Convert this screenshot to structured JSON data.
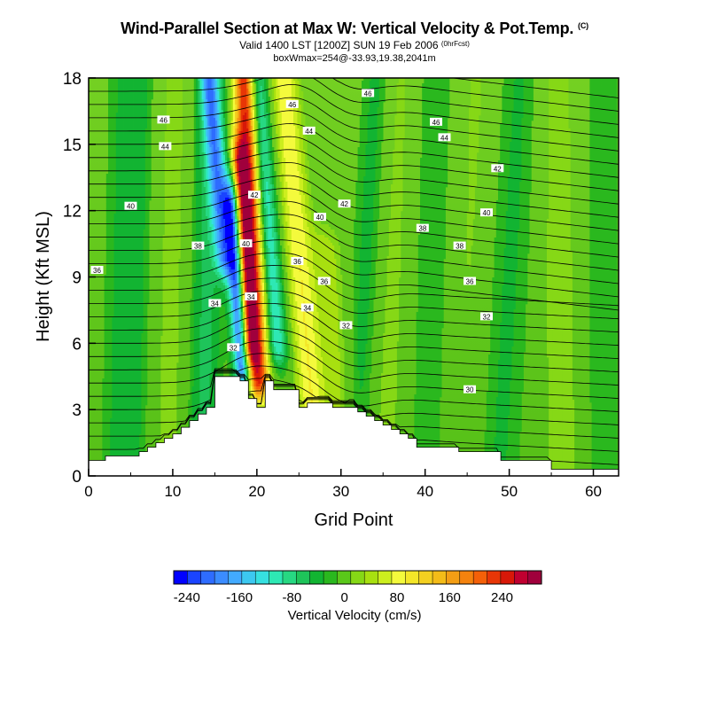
{
  "header": {
    "title": "Wind-Parallel Section at Max W: Vertical Velocity & Pot.Temp.",
    "copyright_mark": "(C)",
    "valid_line": "Valid 1400 LST [1200Z] SUN 19 Feb 2006",
    "forecast_tag": "(0hrFcst)",
    "box_line": "boxWmax=254@-33.93,19.38,2041m"
  },
  "chart_data": {
    "type": "heatmap",
    "xlabel": "Grid Point",
    "ylabel": "Height (Kft MSL)",
    "xlim": [
      0,
      63
    ],
    "ylim": [
      0,
      18
    ],
    "x_ticks": [
      0,
      10,
      20,
      30,
      40,
      50,
      60
    ],
    "y_ticks": [
      0,
      3,
      6,
      9,
      12,
      15,
      18
    ],
    "colorbar": {
      "label": "Vertical Velocity (cm/s)",
      "ticks": [
        -240,
        -160,
        -80,
        0,
        80,
        160,
        240
      ],
      "range": [
        -260,
        300
      ],
      "colors": [
        "#0000ff",
        "#1a44ff",
        "#2e6cff",
        "#3b8cff",
        "#42aaff",
        "#3cc8f0",
        "#36e0e0",
        "#2ee8b4",
        "#27d882",
        "#1ec45a",
        "#12b432",
        "#2ab81e",
        "#5ac81a",
        "#86d816",
        "#a8e010",
        "#ccee1e",
        "#f4fa3c",
        "#f4e628",
        "#f4d020",
        "#f4bc18",
        "#f49e14",
        "#f4820e",
        "#f46008",
        "#e83606",
        "#d81808",
        "#c00030",
        "#a0003c"
      ]
    },
    "series": [
      {
        "name": "Vertical Velocity",
        "unit": "cm/s",
        "terrain_height_kft_per_column": [
          0.7,
          0.7,
          0.9,
          0.9,
          0.9,
          0.9,
          1.1,
          1.3,
          1.5,
          1.7,
          1.9,
          2.2,
          2.5,
          2.8,
          3.1,
          4.5,
          4.5,
          4.5,
          4.3,
          3.5,
          3.1,
          4.3,
          3.9,
          3.9,
          3.9,
          3.1,
          3.3,
          3.3,
          3.3,
          3.1,
          3.1,
          3.1,
          2.9,
          2.7,
          2.5,
          2.3,
          2.1,
          1.9,
          1.7,
          1.3,
          1.3,
          1.3,
          1.3,
          1.3,
          1.1,
          1.1,
          1.1,
          1.1,
          1.1,
          0.7,
          0.7,
          0.7,
          0.7,
          0.7,
          0.7,
          0.3,
          0.3,
          0.3,
          0.3,
          0.3,
          0.3,
          0.3,
          0.3
        ],
        "features": [
          {
            "kind": "updraft",
            "peak_w": 254,
            "center_grid_point": 19,
            "height_range_kft": [
              4.5,
              18
            ]
          },
          {
            "kind": "downdraft",
            "peak_w": -240,
            "center_grid_point": 17,
            "height_range_kft": [
              5,
              12
            ]
          },
          {
            "kind": "downdraft",
            "peak_w": -120,
            "center_grid_point": 22,
            "height_range_kft": [
              6,
              18
            ]
          },
          {
            "kind": "updraft",
            "peak_w": 100,
            "center_grid_point": 25,
            "height_range_kft": [
              3,
              18
            ]
          }
        ]
      },
      {
        "name": "Pot.Temp.",
        "isentrope_labels": [
          {
            "text": "46",
            "x": 8.9,
            "y": 16.1
          },
          {
            "text": "46",
            "x": 24.2,
            "y": 16.8
          },
          {
            "text": "46",
            "x": 33.2,
            "y": 17.3
          },
          {
            "text": "46",
            "x": 41.3,
            "y": 16.0
          },
          {
            "text": "44",
            "x": 9.1,
            "y": 14.9
          },
          {
            "text": "44",
            "x": 26.2,
            "y": 15.6
          },
          {
            "text": "44",
            "x": 42.3,
            "y": 15.3
          },
          {
            "text": "42",
            "x": 19.7,
            "y": 12.7
          },
          {
            "text": "42",
            "x": 30.4,
            "y": 12.3
          },
          {
            "text": "42",
            "x": 48.6,
            "y": 13.9
          },
          {
            "text": "40",
            "x": 5.0,
            "y": 12.2
          },
          {
            "text": "40",
            "x": 18.7,
            "y": 10.5
          },
          {
            "text": "40",
            "x": 27.5,
            "y": 11.7
          },
          {
            "text": "40",
            "x": 47.3,
            "y": 11.9
          },
          {
            "text": "38",
            "x": 13.0,
            "y": 10.4
          },
          {
            "text": "38",
            "x": 39.7,
            "y": 11.2
          },
          {
            "text": "38",
            "x": 44.1,
            "y": 10.4
          },
          {
            "text": "36",
            "x": 1.0,
            "y": 9.3
          },
          {
            "text": "36",
            "x": 24.8,
            "y": 9.7
          },
          {
            "text": "36",
            "x": 28.0,
            "y": 8.8
          },
          {
            "text": "36",
            "x": 45.3,
            "y": 8.8
          },
          {
            "text": "34",
            "x": 15.0,
            "y": 7.8
          },
          {
            "text": "34",
            "x": 19.3,
            "y": 8.1
          },
          {
            "text": "34",
            "x": 26.0,
            "y": 7.6
          },
          {
            "text": "32",
            "x": 17.2,
            "y": 5.8
          },
          {
            "text": "32",
            "x": 30.6,
            "y": 6.8
          },
          {
            "text": "32",
            "x": 47.3,
            "y": 7.2
          },
          {
            "text": "30",
            "x": 45.3,
            "y": 3.9
          }
        ]
      }
    ]
  }
}
